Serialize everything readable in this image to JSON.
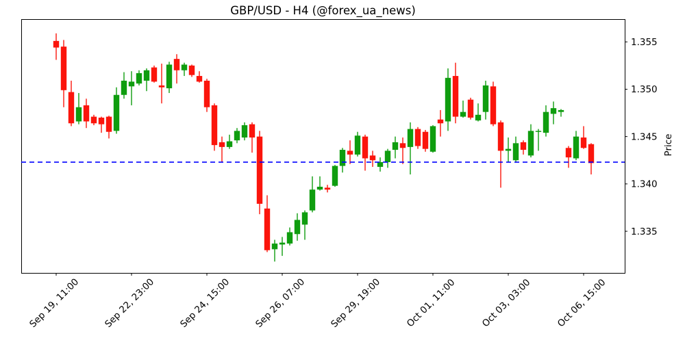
{
  "chart_data": {
    "type": "candlestick",
    "title": "GBP/USD - H4 (@forex_ua_news)",
    "instrument": "GBP/USD",
    "timeframe": "H4",
    "source_handle": "@forex_ua_news",
    "ylabel": "Price",
    "ohlc_order": [
      "open",
      "high",
      "low",
      "close"
    ],
    "candles": [
      [
        1.3551,
        1.3559,
        1.3531,
        1.3544
      ],
      [
        1.3545,
        1.3552,
        1.3481,
        1.3499
      ],
      [
        1.3497,
        1.3509,
        1.3461,
        1.3464
      ],
      [
        1.3466,
        1.3496,
        1.3463,
        1.3481
      ],
      [
        1.3483,
        1.349,
        1.3459,
        1.3466
      ],
      [
        1.3471,
        1.3473,
        1.3462,
        1.3464
      ],
      [
        1.347,
        1.3471,
        1.3454,
        1.3463
      ],
      [
        1.3471,
        1.3472,
        1.3448,
        1.3455
      ],
      [
        1.3456,
        1.3502,
        1.3453,
        1.3494
      ],
      [
        1.3494,
        1.3518,
        1.349,
        1.3509
      ],
      [
        1.3503,
        1.3519,
        1.3483,
        1.3508
      ],
      [
        1.3506,
        1.352,
        1.3504,
        1.3517
      ],
      [
        1.3509,
        1.3522,
        1.3498,
        1.352
      ],
      [
        1.3523,
        1.3525,
        1.3507,
        1.3508
      ],
      [
        1.3504,
        1.3527,
        1.3485,
        1.3502
      ],
      [
        1.3501,
        1.3529,
        1.3496,
        1.3526
      ],
      [
        1.3532,
        1.3537,
        1.3506,
        1.352
      ],
      [
        1.352,
        1.3528,
        1.3514,
        1.3526
      ],
      [
        1.3525,
        1.3526,
        1.3513,
        1.3515
      ],
      [
        1.3514,
        1.3519,
        1.3507,
        1.3508
      ],
      [
        1.3509,
        1.3511,
        1.3476,
        1.3481
      ],
      [
        1.3483,
        1.3485,
        1.3435,
        1.3441
      ],
      [
        1.3444,
        1.345,
        1.3423,
        1.3439
      ],
      [
        1.3439,
        1.3452,
        1.3437,
        1.3445
      ],
      [
        1.3446,
        1.3459,
        1.3443,
        1.3456
      ],
      [
        1.3449,
        1.3465,
        1.3446,
        1.3462
      ],
      [
        1.3463,
        1.3465,
        1.3433,
        1.3449
      ],
      [
        1.345,
        1.3456,
        1.3368,
        1.3379
      ],
      [
        1.3374,
        1.3388,
        1.3328,
        1.333
      ],
      [
        1.3331,
        1.3341,
        1.3318,
        1.3337
      ],
      [
        1.3336,
        1.3344,
        1.3324,
        1.3338
      ],
      [
        1.3337,
        1.3354,
        1.3335,
        1.3349
      ],
      [
        1.3347,
        1.3369,
        1.334,
        1.3362
      ],
      [
        1.3357,
        1.3372,
        1.3341,
        1.337
      ],
      [
        1.3372,
        1.3408,
        1.337,
        1.3394
      ],
      [
        1.3394,
        1.3408,
        1.3393,
        1.3397
      ],
      [
        1.3396,
        1.3399,
        1.3391,
        1.3394
      ],
      [
        1.3398,
        1.342,
        1.3397,
        1.3419
      ],
      [
        1.3419,
        1.3438,
        1.3412,
        1.3436
      ],
      [
        1.3435,
        1.3446,
        1.3421,
        1.3431
      ],
      [
        1.3431,
        1.3455,
        1.3429,
        1.3451
      ],
      [
        1.345,
        1.3452,
        1.3414,
        1.3427
      ],
      [
        1.343,
        1.3435,
        1.3418,
        1.3425
      ],
      [
        1.3418,
        1.3428,
        1.3413,
        1.3423
      ],
      [
        1.3423,
        1.3437,
        1.3417,
        1.3435
      ],
      [
        1.3436,
        1.345,
        1.3427,
        1.3444
      ],
      [
        1.3443,
        1.3449,
        1.3421,
        1.3438
      ],
      [
        1.3439,
        1.3465,
        1.341,
        1.3458
      ],
      [
        1.3458,
        1.346,
        1.3437,
        1.344
      ],
      [
        1.3455,
        1.3457,
        1.3434,
        1.3437
      ],
      [
        1.3434,
        1.3462,
        1.3433,
        1.3461
      ],
      [
        1.3468,
        1.3478,
        1.345,
        1.3464
      ],
      [
        1.3466,
        1.3522,
        1.3456,
        1.3512
      ],
      [
        1.3514,
        1.3528,
        1.3464,
        1.3471
      ],
      [
        1.3471,
        1.3488,
        1.347,
        1.3476
      ],
      [
        1.3489,
        1.3491,
        1.3468,
        1.347
      ],
      [
        1.3467,
        1.3485,
        1.3466,
        1.3473
      ],
      [
        1.3476,
        1.3509,
        1.3468,
        1.3504
      ],
      [
        1.3503,
        1.3508,
        1.3461,
        1.3463
      ],
      [
        1.3465,
        1.3467,
        1.3396,
        1.3435
      ],
      [
        1.3435,
        1.3449,
        1.3423,
        1.3437
      ],
      [
        1.3425,
        1.345,
        1.3423,
        1.3443
      ],
      [
        1.3444,
        1.3446,
        1.3431,
        1.3436
      ],
      [
        1.343,
        1.3463,
        1.3428,
        1.3456
      ],
      [
        1.3455,
        1.3458,
        1.3435,
        1.3456
      ],
      [
        1.3454,
        1.3483,
        1.345,
        1.3476
      ],
      [
        1.3474,
        1.3487,
        1.3463,
        1.348
      ],
      [
        1.3476,
        1.3479,
        1.3471,
        1.3478
      ],
      [
        1.3438,
        1.344,
        1.3417,
        1.3428
      ],
      [
        1.3427,
        1.3456,
        1.3425,
        1.345
      ],
      [
        1.3449,
        1.3461,
        1.3437,
        1.3438
      ],
      [
        1.3442,
        1.3443,
        1.341,
        1.3422
      ]
    ],
    "ylim": [
      1.3306,
      1.3574
    ],
    "y_tick_values": [
      1.355,
      1.35,
      1.345,
      1.34,
      1.335
    ],
    "y_tick_labels": [
      "1.355",
      "1.350",
      "1.345",
      "1.340",
      "1.335"
    ],
    "y_axis_side": "right",
    "x_tick_indices": [
      0,
      10,
      20,
      30,
      40,
      50,
      60,
      70
    ],
    "x_tick_labels": [
      "Sep 19, 11:00",
      "Sep 22, 23:00",
      "Sep 24, 15:00",
      "Sep 26, 07:00",
      "Sep 29, 19:00",
      "Oct 01, 11:00",
      "Oct 03, 03:00",
      "Oct 06, 15:00"
    ],
    "grid": false,
    "legend": false,
    "support_line": {
      "price": 1.3423,
      "style": "dashed",
      "color": "#0000ff"
    },
    "colors": {
      "up": "#0f9d0f",
      "down": "#fb150c",
      "axis": "#000000",
      "background": "#ffffff"
    }
  }
}
